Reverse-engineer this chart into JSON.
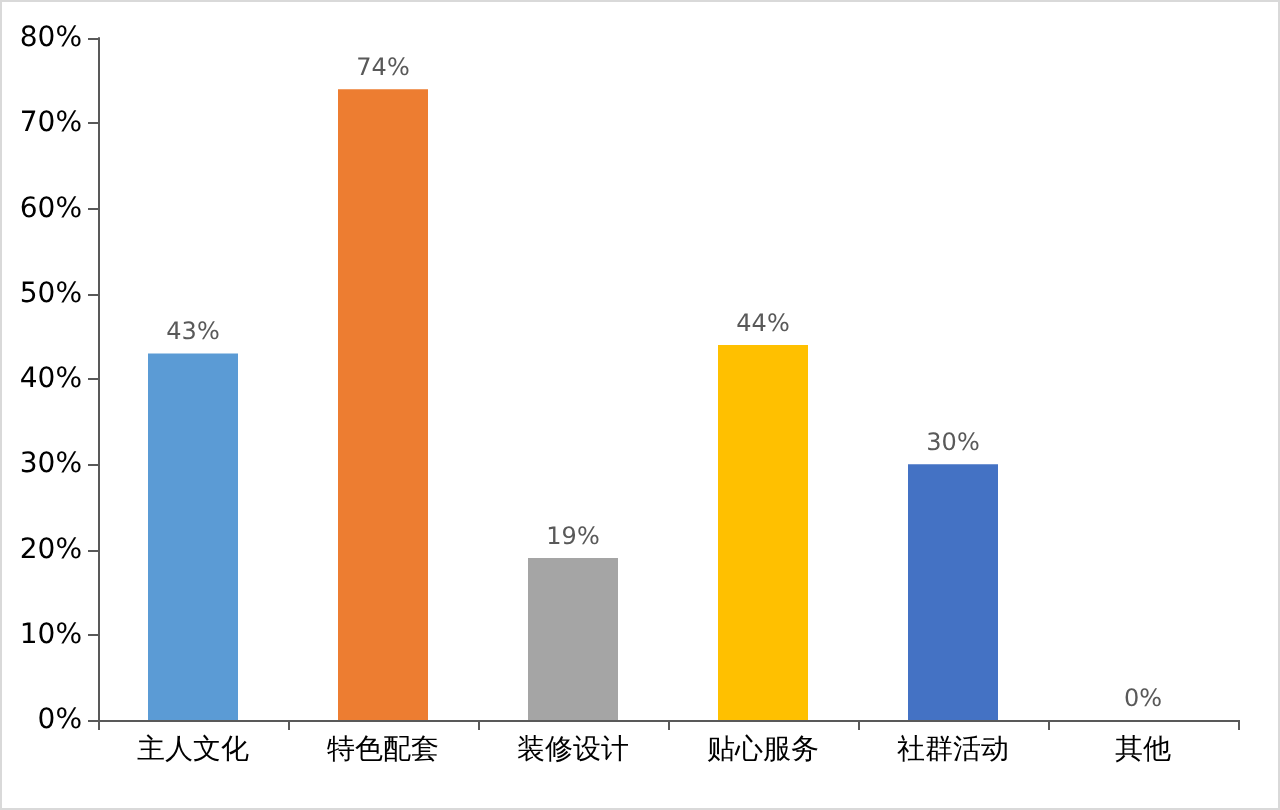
{
  "chart_data": {
    "type": "bar",
    "categories": [
      "主人文化",
      "特色配套",
      "装修设计",
      "贴心服务",
      "社群活动",
      "其他"
    ],
    "values": [
      43,
      74,
      19,
      44,
      30,
      0
    ],
    "colors": [
      "#5b9bd5",
      "#ed7d31",
      "#a5a5a5",
      "#ffc000",
      "#4472c4",
      "#70ad47"
    ],
    "value_labels": [
      "43%",
      "74%",
      "19%",
      "44%",
      "30%",
      "0%"
    ],
    "ylim": [
      0,
      80
    ],
    "yticks": [
      {
        "value": 0,
        "label": "0%"
      },
      {
        "value": 10,
        "label": "10%"
      },
      {
        "value": 20,
        "label": "20%"
      },
      {
        "value": 30,
        "label": "30%"
      },
      {
        "value": 40,
        "label": "40%"
      },
      {
        "value": 50,
        "label": "50%"
      },
      {
        "value": 60,
        "label": "60%"
      },
      {
        "value": 70,
        "label": "70%"
      },
      {
        "value": 80,
        "label": "80%"
      }
    ],
    "grid": false
  }
}
